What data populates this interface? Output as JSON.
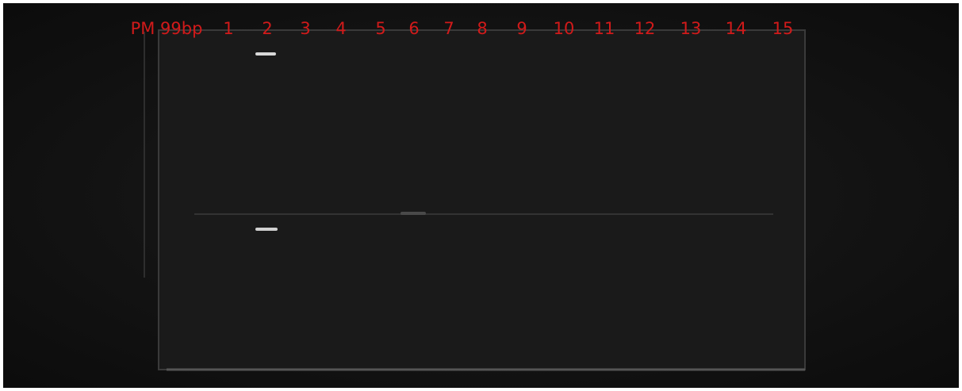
{
  "lanes": [
    "PM 99bp",
    "1",
    "2",
    "3",
    "4",
    "5",
    "6",
    "7",
    "8",
    "9",
    "10",
    "11",
    "12",
    "13",
    "14",
    "15"
  ]
}
